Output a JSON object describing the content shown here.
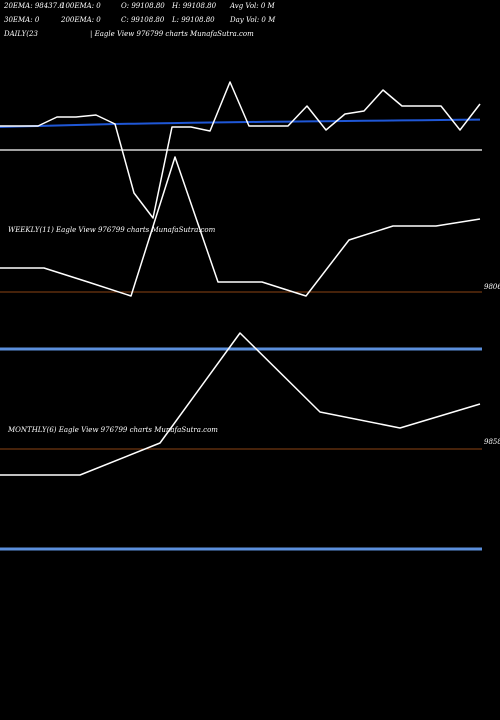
{
  "header": {
    "row1": [
      "20EMA: 98437.6",
      "100EMA: 0",
      "O: 99108.80",
      "H: 99108.80",
      "Avg Vol: 0  M"
    ],
    "row2": [
      "30EMA: 0",
      "200EMA: 0",
      "C: 99108.80",
      "L: 99108.80",
      "Day Vol: 0  M"
    ],
    "row3": [
      "DAILY(23",
      "|  Eagle   View   976799 charts MunafaSutra.com"
    ]
  },
  "colors": {
    "price_line": "#ffffff",
    "ema_line": "#1f57d6",
    "level_line": "#5b8fdc",
    "separator": "#8b4513",
    "gray_line": "#a0a0a0"
  },
  "chart_data": [
    {
      "type": "line",
      "panel": "daily",
      "title": "DAILY(23",
      "series": [
        {
          "values": [
            126,
            126,
            126,
            117,
            117,
            115,
            124,
            193,
            218,
            127,
            127,
            131,
            82,
            126,
            126,
            126,
            106,
            130,
            114,
            111,
            90,
            106,
            106,
            106,
            130,
            104
          ]
        },
        {
          "values": [
            127,
            126.5,
            126,
            125.5,
            125,
            124.5,
            124,
            123.7,
            123.4,
            123.1,
            122.8,
            122.5,
            122.2,
            122,
            121.8,
            121.6,
            121.4,
            121.2,
            121,
            120.8,
            120.6,
            120.4,
            120.2,
            120,
            119.8,
            119.6
          ]
        }
      ]
    },
    {
      "type": "line",
      "panel": "weekly",
      "title": "WEEKLY(11) Eagle   View   976799 charts MunafaSutra.com",
      "right_label": "9806",
      "series": [
        {
          "values": [
            268,
            268,
            282,
            296,
            157,
            282,
            282,
            296,
            240,
            226,
            226,
            219
          ]
        }
      ]
    },
    {
      "type": "line",
      "panel": "monthly",
      "title": "MONTHLY(6) Eagle   View   976799 charts MunafaSutra.com",
      "right_label": "9858",
      "series": [
        {
          "values": [
            475,
            475,
            443,
            333,
            412,
            428,
            404
          ]
        }
      ]
    }
  ]
}
